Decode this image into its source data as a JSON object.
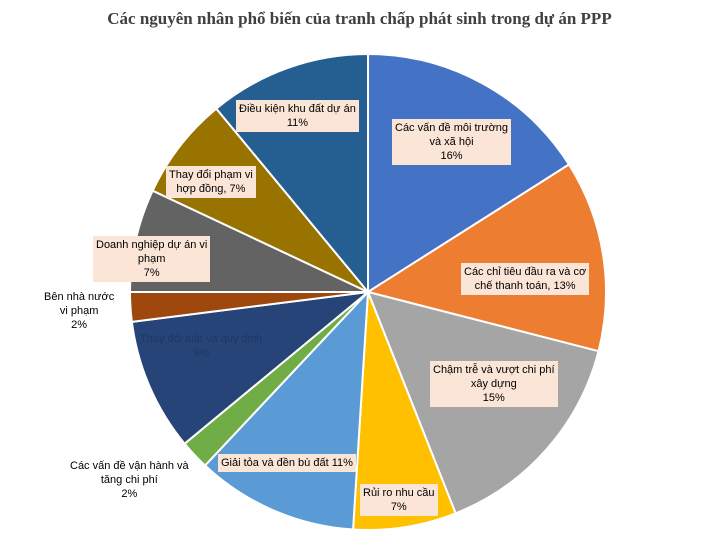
{
  "chart_data": {
    "type": "pie",
    "title": "Các nguyên nhân phổ biến của tranh chấp phát sinh trong dự án PPP",
    "slices": [
      {
        "lines": [
          "Các vấn đề môi trường",
          "và xã hội"
        ],
        "pct_label": "16%",
        "value": 16,
        "color": "#4472c4"
      },
      {
        "lines": [
          "Các chỉ tiêu đầu ra và cơ",
          "chế thanh toán, 13%"
        ],
        "pct_label": "",
        "value": 13,
        "color": "#ed7d31"
      },
      {
        "lines": [
          "Chậm trễ và vượt chi phí",
          "xây dựng"
        ],
        "pct_label": "15%",
        "value": 15,
        "color": "#a5a5a5"
      },
      {
        "lines": [
          "Rủi ro nhu cầu"
        ],
        "pct_label": "7%",
        "value": 7,
        "color": "#ffc000"
      },
      {
        "lines": [
          "Giải tỏa và đền bù đất 11%"
        ],
        "pct_label": "",
        "value": 11,
        "color": "#5b9bd5"
      },
      {
        "lines": [
          "Các vấn đề vận hành và",
          "tăng chi phí"
        ],
        "pct_label": "2%",
        "value": 2,
        "color": "#70ad47"
      },
      {
        "lines": [
          "Thay đổi luật và quy định"
        ],
        "pct_label": "9%",
        "value": 9,
        "color": "#264478"
      },
      {
        "lines": [
          "Bên nhà nước",
          "vi phạm"
        ],
        "pct_label": "2%",
        "value": 2,
        "color": "#9e480e"
      },
      {
        "lines": [
          "Doanh nghiệp dự án vi",
          "phạm"
        ],
        "pct_label": "7%",
        "value": 7,
        "color": "#636363"
      },
      {
        "lines": [
          "Thay đổi phạm vi",
          "hợp đồng, 7%"
        ],
        "pct_label": "",
        "value": 7,
        "color": "#997300"
      },
      {
        "lines": [
          "Điều kiện khu đất dự án"
        ],
        "pct_label": "11%",
        "value": 11,
        "color": "#255e91"
      }
    ]
  }
}
